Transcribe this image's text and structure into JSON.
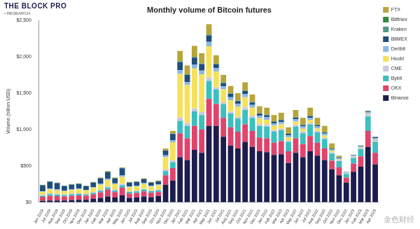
{
  "chart_data": {
    "type": "bar",
    "title": "Monthly volume of Bitcoin futures",
    "brand": {
      "name": "THE BLOCK PRO",
      "tagline": "• RESEARCH"
    },
    "watermark": "金色财经",
    "y_label": "Volume (billion USD)",
    "stacked": true,
    "grid": false,
    "legend": "top-right",
    "ylim": [
      0,
      2500
    ],
    "yticks": [
      {
        "value": 0,
        "label": "$0"
      },
      {
        "value": 500,
        "label": "$500"
      },
      {
        "value": 1000,
        "label": "$1,000"
      },
      {
        "value": 1500,
        "label": "$1,500"
      },
      {
        "value": 2000,
        "label": "$2,000"
      },
      {
        "value": 2500,
        "label": "$2,500"
      }
    ],
    "categories": [
      "Jun 2019",
      "Jul 2019",
      "Aug 2019",
      "Sep 2019",
      "Oct 2019",
      "Nov 2019",
      "Dec 2019",
      "Jan 2020",
      "Feb 2020",
      "Mar 2020",
      "Apr 2020",
      "May 2020",
      "Jun 2020",
      "Jul 2020",
      "Aug 2020",
      "Sep 2020",
      "Oct 2020",
      "Nov 2020",
      "Dec 2020",
      "Jan 2021",
      "Feb 2021",
      "Mar 2021",
      "Apr 2021",
      "May 2021",
      "Jun 2021",
      "Jul 2021",
      "Aug 2021",
      "Sep 2021",
      "Oct 2021",
      "Nov 2021",
      "Dec 2021",
      "Jan 2022",
      "Feb 2022",
      "Mar 2022",
      "Apr 2022",
      "May 2022",
      "Jun 2022",
      "Jul 2022",
      "Aug 2022",
      "Sep 2022",
      "Oct 2022",
      "Nov 2022",
      "Dec 2022",
      "Jan 2023",
      "Feb 2023",
      "Mar 2023",
      "Apr 2023"
    ],
    "series": [
      {
        "name": "Binance",
        "color": "#1c1c4e",
        "values": [
          20,
          25,
          25,
          25,
          30,
          35,
          35,
          45,
          60,
          80,
          65,
          95,
          60,
          65,
          80,
          70,
          85,
          240,
          300,
          620,
          580,
          720,
          680,
          1050,
          1050,
          900,
          780,
          740,
          830,
          760,
          700,
          690,
          650,
          660,
          540,
          680,
          620,
          700,
          640,
          580,
          450,
          370,
          270,
          420,
          490,
          760,
          520
        ]
      },
      {
        "name": "OKX",
        "color": "#e0436b",
        "values": [
          55,
          65,
          60,
          55,
          60,
          60,
          55,
          65,
          75,
          95,
          75,
          105,
          60,
          62,
          70,
          60,
          55,
          130,
          170,
          330,
          300,
          330,
          320,
          370,
          300,
          260,
          250,
          230,
          240,
          220,
          190,
          190,
          170,
          180,
          160,
          200,
          180,
          210,
          180,
          160,
          120,
          110,
          70,
          110,
          140,
          220,
          160
        ]
      },
      {
        "name": "Bybit",
        "color": "#3bbfbf",
        "values": [
          15,
          20,
          20,
          18,
          20,
          20,
          18,
          20,
          25,
          30,
          25,
          35,
          22,
          22,
          25,
          22,
          25,
          60,
          80,
          170,
          170,
          200,
          200,
          250,
          200,
          190,
          190,
          180,
          200,
          180,
          160,
          160,
          150,
          150,
          130,
          160,
          150,
          160,
          140,
          130,
          100,
          85,
          50,
          80,
          100,
          200,
          150
        ]
      },
      {
        "name": "CME",
        "color": "#c9c9e0",
        "values": [
          10,
          12,
          10,
          8,
          8,
          8,
          6,
          10,
          12,
          12,
          8,
          15,
          8,
          8,
          10,
          8,
          8,
          20,
          25,
          45,
          40,
          40,
          40,
          45,
          30,
          25,
          25,
          25,
          35,
          30,
          25,
          25,
          22,
          22,
          18,
          25,
          22,
          22,
          20,
          18,
          14,
          14,
          10,
          16,
          20,
          30,
          25
        ]
      },
      {
        "name": "Huobi",
        "color": "#f5e15c",
        "values": [
          45,
          55,
          50,
          45,
          50,
          55,
          48,
          58,
          70,
          90,
          75,
          100,
          58,
          60,
          65,
          55,
          60,
          170,
          250,
          600,
          520,
          550,
          520,
          430,
          220,
          180,
          160,
          140,
          140,
          110,
          80,
          70,
          60,
          60,
          45,
          45,
          40,
          40,
          35,
          30,
          22,
          10,
          5,
          5,
          6,
          8,
          6
        ]
      },
      {
        "name": "Deribit",
        "color": "#8cb8e8",
        "values": [
          8,
          10,
          10,
          8,
          8,
          10,
          8,
          10,
          12,
          15,
          12,
          18,
          10,
          12,
          15,
          12,
          12,
          25,
          30,
          50,
          45,
          50,
          50,
          60,
          45,
          40,
          40,
          38,
          45,
          40,
          35,
          35,
          30,
          32,
          28,
          32,
          30,
          32,
          28,
          25,
          20,
          18,
          10,
          12,
          15,
          25,
          20
        ]
      },
      {
        "name": "BitMEX",
        "color": "#1f4e79",
        "values": [
          80,
          95,
          88,
          65,
          66,
          63,
          52,
          63,
          75,
          95,
          70,
          100,
          52,
          50,
          52,
          42,
          43,
          65,
          85,
          110,
          95,
          100,
          90,
          90,
          55,
          45,
          45,
          40,
          40,
          32,
          28,
          28,
          25,
          25,
          20,
          22,
          20,
          20,
          18,
          16,
          12,
          10,
          3,
          5,
          6,
          12,
          15
        ]
      },
      {
        "name": "Kraken",
        "color": "#4e9a8a",
        "values": [
          3,
          3,
          3,
          2,
          3,
          3,
          2,
          2,
          3,
          3,
          2,
          3,
          2,
          2,
          2,
          2,
          2,
          4,
          5,
          8,
          7,
          7,
          7,
          8,
          6,
          5,
          5,
          5,
          6,
          5,
          4,
          4,
          4,
          4,
          3,
          4,
          3,
          4,
          3,
          3,
          2,
          2,
          1,
          1,
          2,
          3,
          3
        ]
      },
      {
        "name": "Bitfinex",
        "color": "#2e8b3a",
        "values": [
          1,
          1,
          1,
          1,
          1,
          1,
          1,
          1,
          1,
          2,
          1,
          2,
          1,
          1,
          1,
          1,
          1,
          2,
          2,
          3,
          3,
          3,
          3,
          3,
          2,
          2,
          2,
          2,
          2,
          2,
          2,
          2,
          1,
          1,
          1,
          1,
          1,
          1,
          1,
          1,
          1,
          1,
          1,
          1,
          1,
          2,
          1
        ]
      },
      {
        "name": "FTX",
        "color": "#b8a53a",
        "values": [
          3,
          4,
          3,
          3,
          4,
          5,
          5,
          6,
          7,
          8,
          7,
          7,
          7,
          8,
          10,
          8,
          9,
          24,
          33,
          144,
          120,
          150,
          140,
          144,
          112,
          103,
          103,
          100,
          112,
          101,
          96,
          96,
          88,
          96,
          85,
          101,
          94,
          111,
          95,
          87,
          69,
          20,
          0,
          0,
          0,
          0,
          0
        ]
      }
    ]
  }
}
